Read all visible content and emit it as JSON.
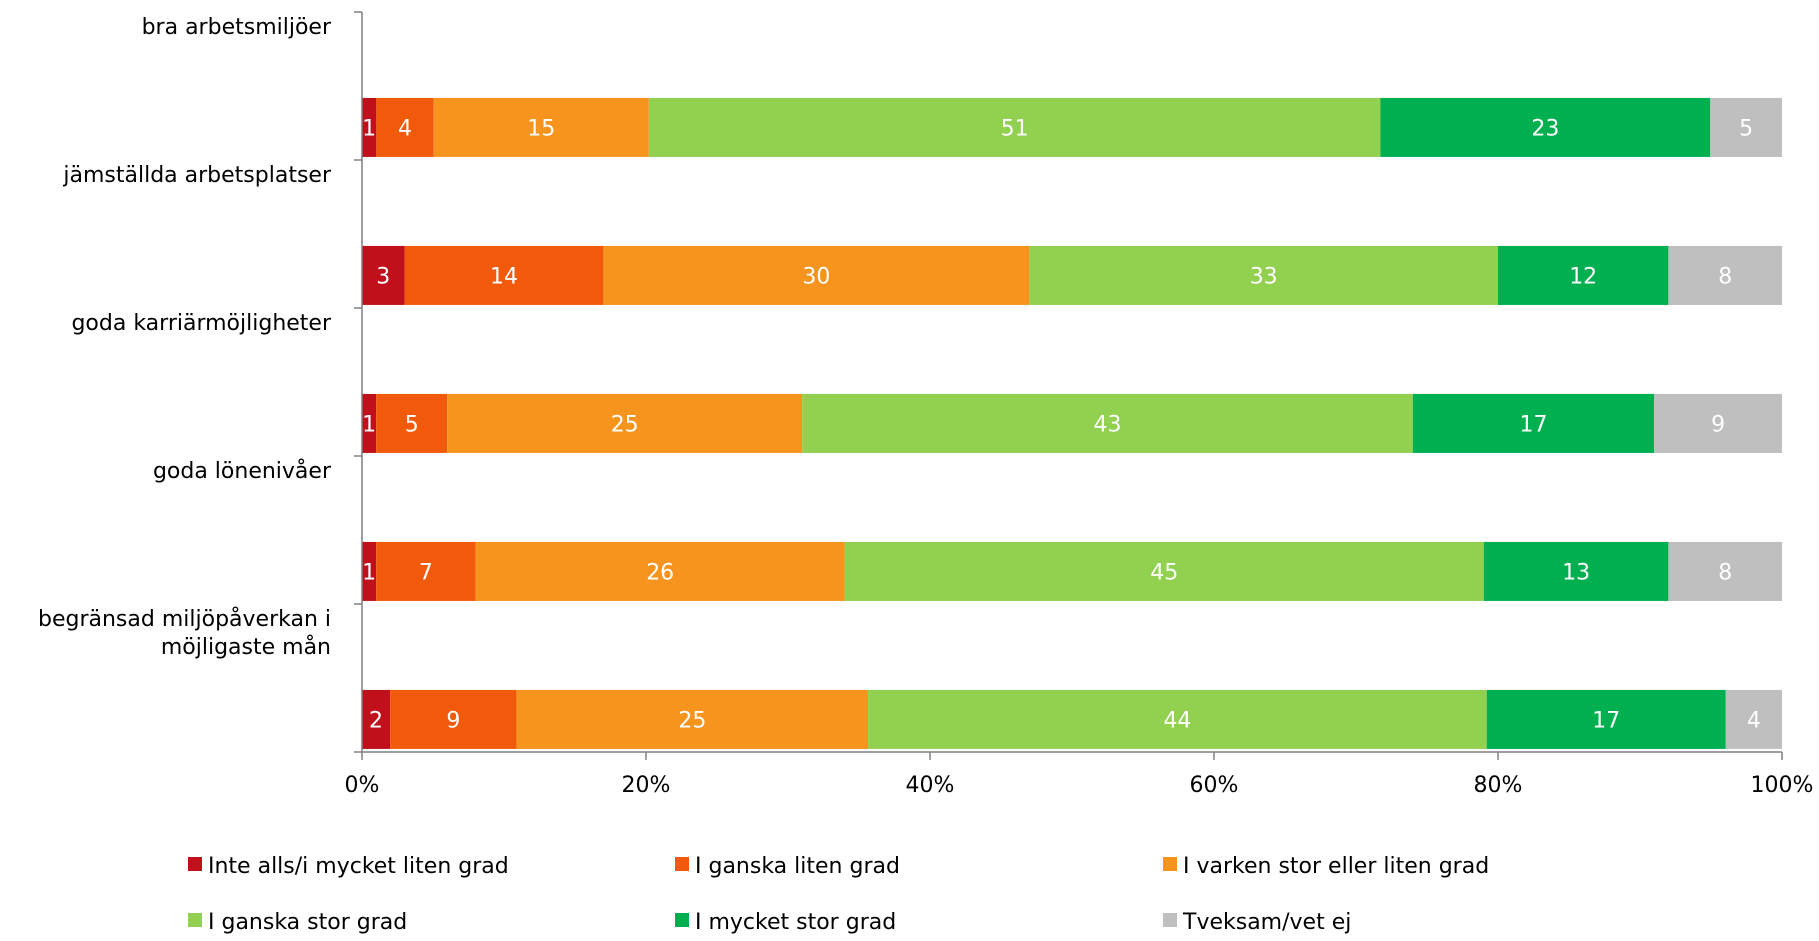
{
  "chart_data": {
    "type": "bar",
    "orientation": "horizontal",
    "stacked": "percent",
    "categories": [
      "bra arbetsmiljöer",
      "jämställda arbetsplatser",
      "goda karriärmöjligheter",
      "goda lönenivåer",
      "begränsad miljöpåverkan i möjligaste mån"
    ],
    "category_lines": [
      [
        "bra arbetsmiljöer"
      ],
      [
        "jämställda arbetsplatser"
      ],
      [
        "goda karriärmöjligheter"
      ],
      [
        "goda lönenivåer"
      ],
      [
        "begränsad miljöpåverkan i",
        "möjligaste mån"
      ]
    ],
    "series": [
      {
        "name": "Inte alls/i mycket liten grad",
        "color": "#C0101C",
        "values": [
          1,
          3,
          1,
          1,
          2
        ]
      },
      {
        "name": "I ganska liten grad",
        "color": "#F05A0A",
        "values": [
          4,
          14,
          5,
          7,
          9
        ]
      },
      {
        "name": "I varken stor eller liten grad",
        "color": "#F7941E",
        "values": [
          15,
          30,
          25,
          26,
          25
        ]
      },
      {
        "name": "I ganska stor grad",
        "color": "#92D050",
        "values": [
          51,
          33,
          43,
          45,
          44
        ]
      },
      {
        "name": "I mycket stor grad",
        "color": "#00B050",
        "values": [
          23,
          12,
          17,
          13,
          17
        ]
      },
      {
        "name": "Tveksam/vet ej",
        "color": "#BFBFBF",
        "values": [
          5,
          8,
          9,
          8,
          4
        ]
      }
    ],
    "xlim": [
      0,
      100
    ],
    "xticks": [
      "0%",
      "20%",
      "40%",
      "60%",
      "80%",
      "100%"
    ],
    "grid": false,
    "legend_position": "bottom",
    "title": "",
    "xlabel": "",
    "ylabel": ""
  }
}
